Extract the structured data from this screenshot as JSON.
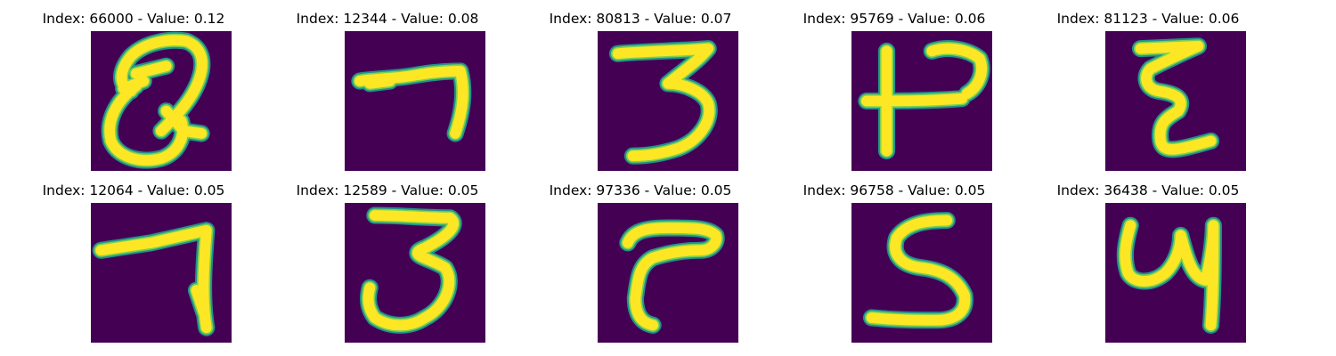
{
  "colors": {
    "background": "#440154",
    "stroke_edge": "#21918c",
    "stroke_mid": "#7ad151",
    "stroke_core": "#fde725"
  },
  "panels": [
    {
      "title": "Index: 66000 - Value: 0.12",
      "index": 66000,
      "value": 0.12
    },
    {
      "title": "Index: 12344 - Value: 0.08",
      "index": 12344,
      "value": 0.08
    },
    {
      "title": "Index: 80813 - Value: 0.07",
      "index": 80813,
      "value": 0.07
    },
    {
      "title": "Index: 95769 - Value: 0.06",
      "index": 95769,
      "value": 0.06
    },
    {
      "title": "Index: 81123 - Value: 0.06",
      "index": 81123,
      "value": 0.06
    },
    {
      "title": "Index: 12064 - Value: 0.05",
      "index": 12064,
      "value": 0.05
    },
    {
      "title": "Index: 12589 - Value: 0.05",
      "index": 12589,
      "value": 0.05
    },
    {
      "title": "Index: 97336 - Value: 0.05",
      "index": 97336,
      "value": 0.05
    },
    {
      "title": "Index: 96758 - Value: 0.05",
      "index": 96758,
      "value": 0.05
    },
    {
      "title": "Index: 36438 - Value: 0.05",
      "index": 36438,
      "value": 0.05
    }
  ]
}
